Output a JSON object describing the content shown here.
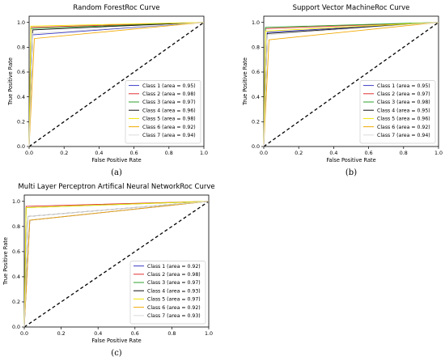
{
  "chart_data": [
    {
      "type": "line",
      "panel_label": "(a)",
      "title": "Random ForestRoc Curve",
      "xlabel": "False Positive Rate",
      "ylabel": "True Positive Rate",
      "xlim": [
        0,
        1
      ],
      "ylim": [
        0,
        1.05
      ],
      "ticks": [
        "0.0",
        "0.2",
        "0.4",
        "0.6",
        "0.8",
        "1.0"
      ],
      "legend_position": "lower-right",
      "diagonal": true,
      "series": [
        {
          "name": "Class 1 (area = 0.95)",
          "color": "#3b3bc4",
          "x": [
            0,
            0.02,
            1
          ],
          "y": [
            0,
            0.9,
            1
          ]
        },
        {
          "name": "Class 2 (area = 0.98)",
          "color": "#e03030",
          "x": [
            0,
            0.01,
            1
          ],
          "y": [
            0,
            0.96,
            1
          ]
        },
        {
          "name": "Class 3 (area = 0.97)",
          "color": "#2ca02c",
          "x": [
            0,
            0.01,
            1
          ],
          "y": [
            0,
            0.95,
            1
          ]
        },
        {
          "name": "Class 4 (area = 0.96)",
          "color": "#111111",
          "x": [
            0,
            0.02,
            1
          ],
          "y": [
            0,
            0.94,
            1
          ]
        },
        {
          "name": "Class 5 (area = 0.98)",
          "color": "#f2e600",
          "x": [
            0,
            0.01,
            1
          ],
          "y": [
            0,
            0.97,
            1
          ]
        },
        {
          "name": "Class 6 (area = 0.92)",
          "color": "#f2a900",
          "x": [
            0,
            0.03,
            1
          ],
          "y": [
            0,
            0.87,
            1
          ]
        },
        {
          "name": "Class 7 (area = 0.94)",
          "color": "#dcdcdc",
          "x": [
            0,
            0.02,
            1
          ],
          "y": [
            0,
            0.91,
            1
          ]
        }
      ]
    },
    {
      "type": "line",
      "panel_label": "(b)",
      "title": "Support Vector MachineRoc Curve",
      "xlabel": "False Positive Rate",
      "ylabel": "True Positive Rate",
      "xlim": [
        0,
        1
      ],
      "ylim": [
        0,
        1.05
      ],
      "ticks": [
        "0.0",
        "0.2",
        "0.4",
        "0.6",
        "0.8",
        "1.0"
      ],
      "legend_position": "lower-right",
      "diagonal": true,
      "series": [
        {
          "name": "Class 1 (area = 0.95)",
          "color": "#3b3bc4",
          "x": [
            0,
            0.02,
            1
          ],
          "y": [
            0,
            0.92,
            1
          ]
        },
        {
          "name": "Class 2 (area = 0.97)",
          "color": "#e03030",
          "x": [
            0,
            0.01,
            1
          ],
          "y": [
            0,
            0.95,
            1
          ]
        },
        {
          "name": "Class 3 (area = 0.98)",
          "color": "#2ca02c",
          "x": [
            0,
            0.01,
            1
          ],
          "y": [
            0,
            0.96,
            1
          ]
        },
        {
          "name": "Class 4 (area = 0.95)",
          "color": "#111111",
          "x": [
            0,
            0.02,
            1
          ],
          "y": [
            0,
            0.91,
            1
          ]
        },
        {
          "name": "Class 5 (area = 0.96)",
          "color": "#f2e600",
          "x": [
            0,
            0.01,
            1
          ],
          "y": [
            0,
            0.93,
            1
          ]
        },
        {
          "name": "Class 6 (area = 0.92)",
          "color": "#f2a900",
          "x": [
            0,
            0.03,
            1
          ],
          "y": [
            0,
            0.86,
            1
          ]
        },
        {
          "name": "Class 7 (area = 0.94)",
          "color": "#dcdcdc",
          "x": [
            0,
            0.02,
            1
          ],
          "y": [
            0,
            0.9,
            1
          ]
        }
      ]
    },
    {
      "type": "line",
      "panel_label": "(c)",
      "title": "Multi Layer Perceptron Artifical Neural NetworkRoc Curve",
      "xlabel": "False Positive Rate",
      "ylabel": "True Positive Rate",
      "xlim": [
        0,
        1
      ],
      "ylim": [
        0,
        1.05
      ],
      "ticks": [
        "0.0",
        "0.2",
        "0.4",
        "0.6",
        "0.8",
        "1.0"
      ],
      "legend_position": "lower-right",
      "diagonal": true,
      "series": [
        {
          "name": "Class 1 (area = 0.92)",
          "color": "#3b3bc4",
          "x": [
            0,
            0.03,
            1
          ],
          "y": [
            0,
            0.85,
            1
          ]
        },
        {
          "name": "Class 2 (area = 0.98)",
          "color": "#e03030",
          "x": [
            0,
            0.01,
            1
          ],
          "y": [
            0,
            0.96,
            1
          ]
        },
        {
          "name": "Class 3 (area = 0.97)",
          "color": "#2ca02c",
          "x": [
            0,
            0.01,
            1
          ],
          "y": [
            0,
            0.95,
            1
          ]
        },
        {
          "name": "Class 4 (area = 0.93)",
          "color": "#111111",
          "x": [
            0,
            0.02,
            1
          ],
          "y": [
            0,
            0.88,
            1
          ]
        },
        {
          "name": "Class 5 (area = 0.97)",
          "color": "#f2e600",
          "x": [
            0,
            0.01,
            1
          ],
          "y": [
            0,
            0.95,
            1
          ]
        },
        {
          "name": "Class 6 (area = 0.92)",
          "color": "#f2a900",
          "x": [
            0,
            0.03,
            1
          ],
          "y": [
            0,
            0.85,
            1
          ]
        },
        {
          "name": "Class 7 (area = 0.93)",
          "color": "#dcdcdc",
          "x": [
            0,
            0.02,
            1
          ],
          "y": [
            0,
            0.88,
            1
          ]
        }
      ]
    }
  ]
}
